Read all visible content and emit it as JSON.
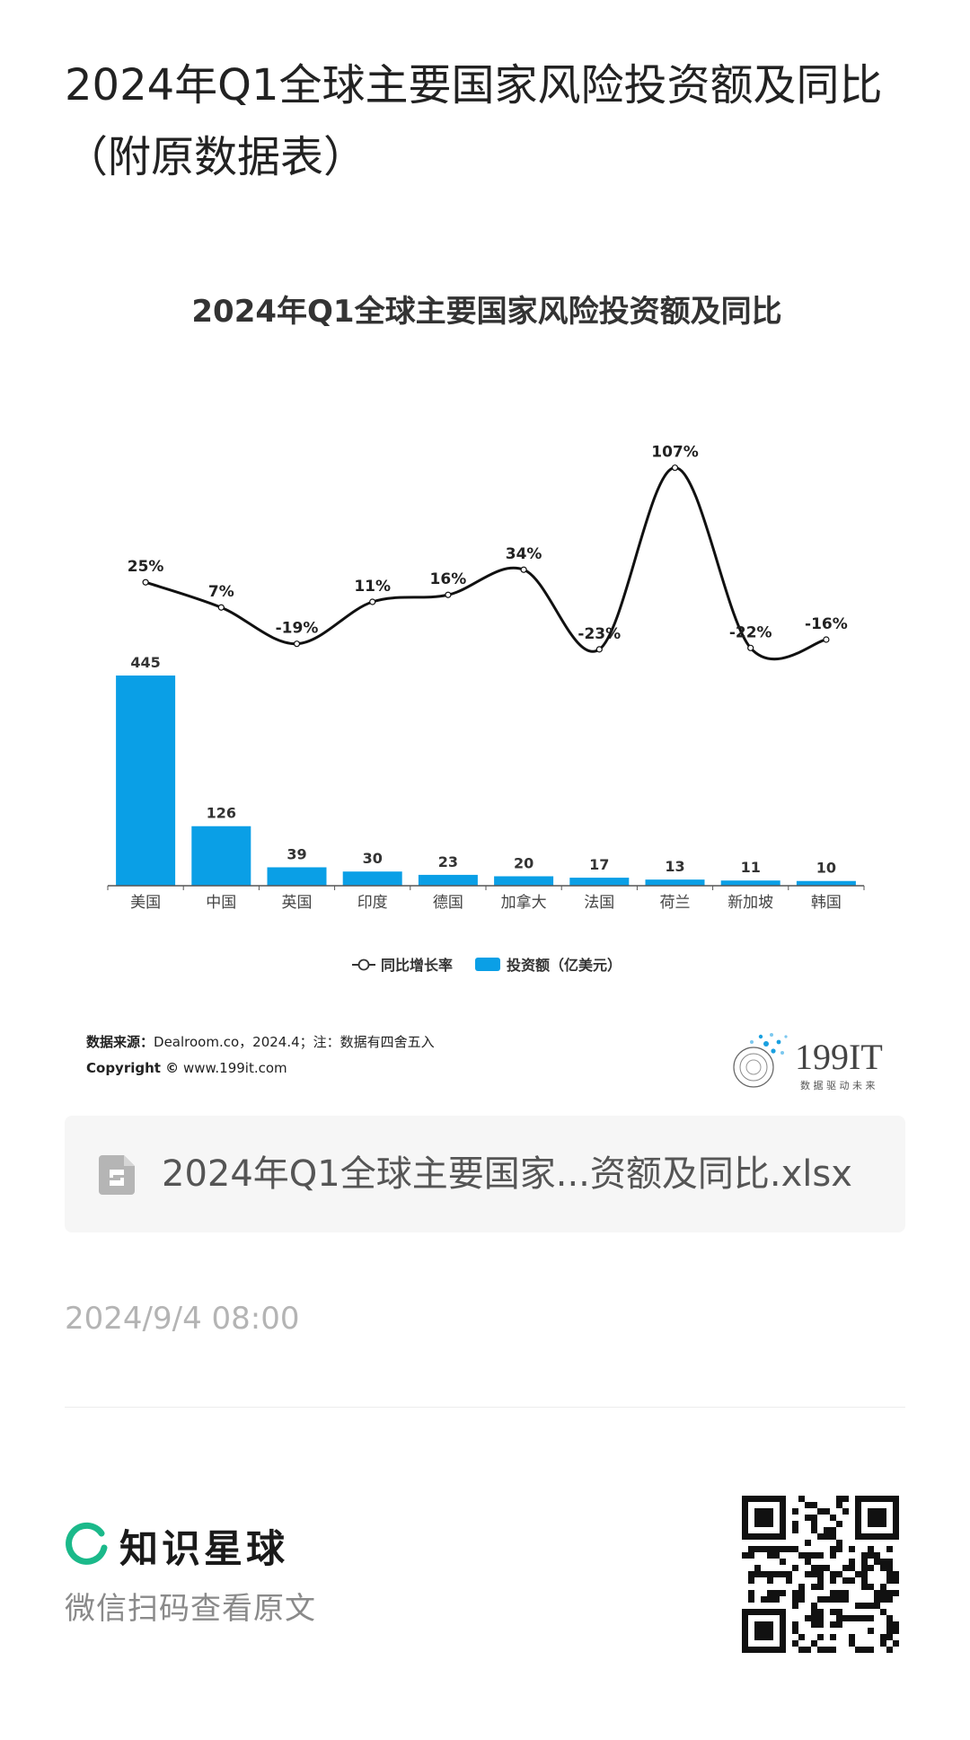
{
  "page": {
    "title": "2024年Q1全球主要国家风险投资额及同比（附原数据表）"
  },
  "chart_data": {
    "type": "bar",
    "title": "2024年Q1全球主要国家风险投资额及同比",
    "categories": [
      "美国",
      "中国",
      "英国",
      "印度",
      "德国",
      "加拿大",
      "法国",
      "荷兰",
      "新加坡",
      "韩国"
    ],
    "series": [
      {
        "name": "投资额（亿美元）",
        "type": "bar",
        "values": [
          445,
          126,
          39,
          30,
          23,
          20,
          17,
          13,
          11,
          10
        ],
        "labels": [
          "445",
          "126",
          "39",
          "30",
          "23",
          "20",
          "17",
          "13",
          "11",
          "10"
        ],
        "color": "#0a9fe6"
      },
      {
        "name": "同比增长率",
        "type": "line",
        "values": [
          25,
          7,
          -19,
          11,
          16,
          34,
          -23,
          107,
          -22,
          -16
        ],
        "labels": [
          "25%",
          "7%",
          "-19%",
          "11%",
          "16%",
          "34%",
          "-23%",
          "107%",
          "-22%",
          "-16%"
        ],
        "color": "#111111"
      }
    ],
    "legend": [
      "同比增长率",
      "投资额（亿美元）"
    ],
    "legend_position": "bottom",
    "grid": false
  },
  "source": {
    "label": "数据来源：",
    "text": "Dealroom.co，2024.4；注：数据有四舍五入",
    "copyright_label": "Copyright ©",
    "copyright_text": "www.199it.com"
  },
  "brand": {
    "name": "199IT",
    "tagline": "数 据 驱 动 未 来"
  },
  "attachment": {
    "file_name": "2024年Q1全球主要国家...资额及同比.xlsx",
    "icon": "spreadsheet-file-icon"
  },
  "post": {
    "timestamp": "2024/9/4 08:00"
  },
  "footer": {
    "platform_name": "知识星球",
    "hint": "微信扫码查看原文",
    "accent": "#1bb98a"
  }
}
